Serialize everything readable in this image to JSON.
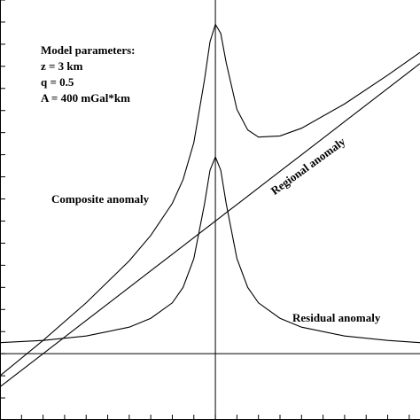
{
  "chart_data": {
    "type": "line",
    "x": [
      -10,
      -8,
      -6,
      -4,
      -3,
      -2,
      -1.5,
      -1,
      -0.5,
      -0.25,
      0,
      0.25,
      0.5,
      1,
      1.5,
      2,
      3,
      4,
      6,
      8,
      9.5
    ],
    "series": [
      {
        "name": "Composite anomaly",
        "color": "#000000",
        "values": [
          -1.0,
          0.6,
          2.3,
          4.2,
          5.35,
          6.8,
          7.875,
          9.55,
          12.425,
          14.1125,
          14.9,
          14.4875,
          13.175,
          11.05,
          10.125,
          9.8,
          9.85,
          10.2,
          11.3,
          12.6,
          13.625
        ]
      },
      {
        "name": "Regional anomaly",
        "color": "#000000",
        "values": [
          -1.5,
          0,
          1.5,
          3,
          3.75,
          4.5,
          4.875,
          5.25,
          5.625,
          5.8125,
          6,
          6.1875,
          6.375,
          6.75,
          7.125,
          7.5,
          8.25,
          9,
          10.5,
          12,
          13.125
        ]
      },
      {
        "name": "Residual anomaly",
        "color": "#000000",
        "values": [
          0.5,
          0.6,
          0.8,
          1.2,
          1.6,
          2.3,
          3.0,
          4.3,
          6.8,
          8.3,
          8.9,
          8.3,
          6.8,
          4.3,
          3.0,
          2.3,
          1.6,
          1.2,
          0.8,
          0.6,
          0.5
        ]
      }
    ],
    "annotations": [
      "Model parameters:",
      "z = 3 km",
      "q = 0.5",
      "A = 400 mGal*km"
    ],
    "xlim": [
      -10,
      9.5
    ],
    "ylim": [
      -3,
      16
    ],
    "xticks": [
      -10,
      -9,
      -8,
      -7,
      -6,
      -5,
      -4,
      -3,
      -2,
      -1,
      0,
      1,
      2,
      3,
      4,
      5,
      6,
      7,
      8,
      9
    ],
    "yticks": [
      -3,
      -2,
      -1,
      0,
      1,
      2,
      3,
      4,
      5,
      6,
      7,
      8,
      9,
      10,
      11,
      12,
      13,
      14,
      15,
      16
    ]
  }
}
